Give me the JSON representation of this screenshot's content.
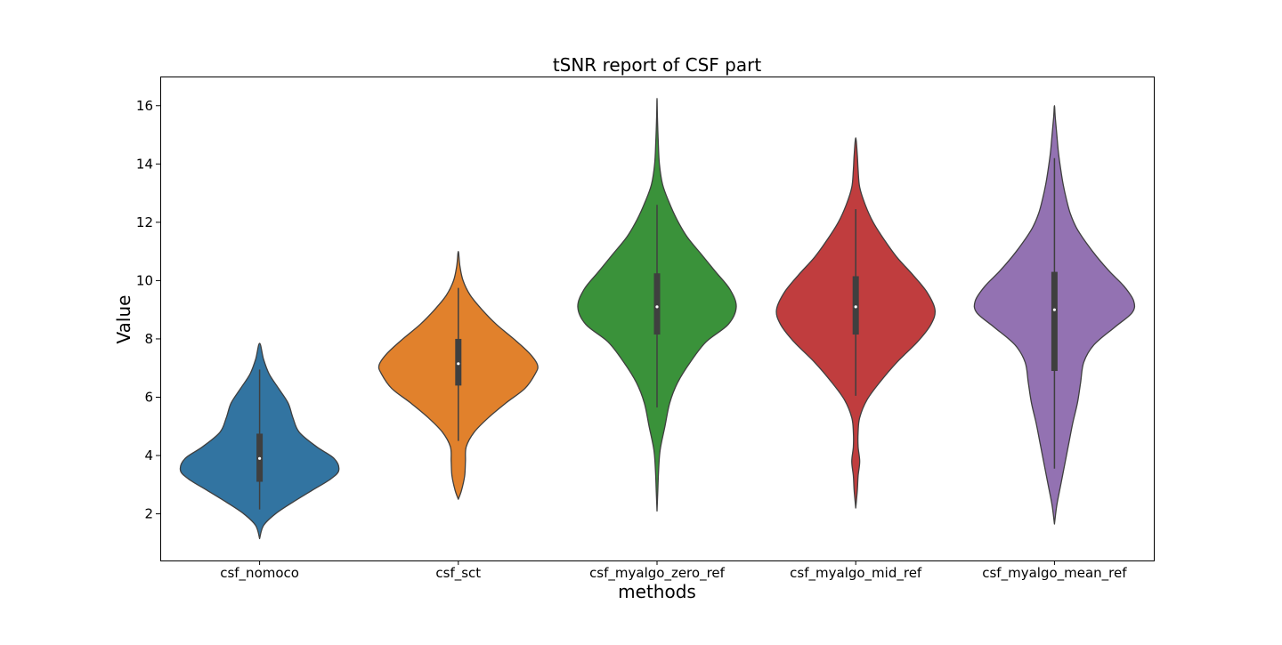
{
  "chart_data": {
    "type": "violin",
    "title": "tSNR report of CSF part",
    "xlabel": "methods",
    "ylabel": "Value",
    "ylim": [
      0.4,
      17.0
    ],
    "yticks": [
      2,
      4,
      6,
      8,
      10,
      12,
      14,
      16
    ],
    "grid": false,
    "legend": "none",
    "categories": [
      "csf_nomoco",
      "csf_sct",
      "csf_myalgo_zero_ref",
      "csf_myalgo_mid_ref",
      "csf_myalgo_mean_ref"
    ],
    "colors": [
      "#3274a1",
      "#e1812c",
      "#3a923a",
      "#c03d3e",
      "#9372b2"
    ],
    "series": [
      {
        "min": 2.15,
        "q1": 3.1,
        "median": 3.9,
        "q3": 4.75,
        "max": 6.95,
        "density": [
          [
            1.15,
            0.0
          ],
          [
            1.6,
            0.05
          ],
          [
            2.0,
            0.2
          ],
          [
            2.4,
            0.42
          ],
          [
            2.8,
            0.66
          ],
          [
            3.2,
            0.9
          ],
          [
            3.5,
            1.0
          ],
          [
            3.9,
            0.94
          ],
          [
            4.3,
            0.72
          ],
          [
            4.8,
            0.5
          ],
          [
            5.3,
            0.42
          ],
          [
            5.8,
            0.36
          ],
          [
            6.3,
            0.24
          ],
          [
            6.8,
            0.12
          ],
          [
            7.3,
            0.05
          ],
          [
            7.85,
            0.0
          ]
        ]
      },
      {
        "min": 4.5,
        "q1": 6.4,
        "median": 7.15,
        "q3": 8.0,
        "max": 9.75,
        "density": [
          [
            2.5,
            0.0
          ],
          [
            2.8,
            0.04
          ],
          [
            3.3,
            0.08
          ],
          [
            3.8,
            0.09
          ],
          [
            4.3,
            0.1
          ],
          [
            4.8,
            0.2
          ],
          [
            5.3,
            0.38
          ],
          [
            5.8,
            0.6
          ],
          [
            6.3,
            0.84
          ],
          [
            6.8,
            0.97
          ],
          [
            7.1,
            1.0
          ],
          [
            7.5,
            0.9
          ],
          [
            8.0,
            0.7
          ],
          [
            8.5,
            0.48
          ],
          [
            9.0,
            0.3
          ],
          [
            9.5,
            0.15
          ],
          [
            10.0,
            0.06
          ],
          [
            10.5,
            0.02
          ],
          [
            11.0,
            0.0
          ]
        ]
      },
      {
        "min": 5.65,
        "q1": 8.15,
        "median": 9.1,
        "q3": 10.25,
        "max": 12.6,
        "density": [
          [
            2.1,
            0.0
          ],
          [
            2.8,
            0.01
          ],
          [
            3.5,
            0.02
          ],
          [
            4.2,
            0.04
          ],
          [
            5.0,
            0.1
          ],
          [
            5.8,
            0.16
          ],
          [
            6.5,
            0.26
          ],
          [
            7.2,
            0.42
          ],
          [
            7.9,
            0.62
          ],
          [
            8.5,
            0.9
          ],
          [
            9.1,
            1.0
          ],
          [
            9.7,
            0.92
          ],
          [
            10.3,
            0.74
          ],
          [
            10.9,
            0.56
          ],
          [
            11.5,
            0.38
          ],
          [
            12.1,
            0.25
          ],
          [
            12.7,
            0.15
          ],
          [
            13.3,
            0.07
          ],
          [
            14.0,
            0.03
          ],
          [
            14.8,
            0.015
          ],
          [
            15.6,
            0.005
          ],
          [
            16.25,
            0.0
          ]
        ]
      },
      {
        "min": 6.05,
        "q1": 8.15,
        "median": 9.1,
        "q3": 10.15,
        "max": 12.45,
        "density": [
          [
            2.2,
            0.0
          ],
          [
            2.8,
            0.02
          ],
          [
            3.3,
            0.03
          ],
          [
            3.8,
            0.05
          ],
          [
            4.3,
            0.03
          ],
          [
            4.8,
            0.03
          ],
          [
            5.3,
            0.05
          ],
          [
            5.9,
            0.14
          ],
          [
            6.5,
            0.3
          ],
          [
            7.2,
            0.52
          ],
          [
            7.9,
            0.78
          ],
          [
            8.5,
            0.95
          ],
          [
            9.0,
            1.0
          ],
          [
            9.6,
            0.9
          ],
          [
            10.2,
            0.72
          ],
          [
            10.8,
            0.52
          ],
          [
            11.4,
            0.36
          ],
          [
            12.0,
            0.22
          ],
          [
            12.6,
            0.12
          ],
          [
            13.2,
            0.05
          ],
          [
            13.8,
            0.03
          ],
          [
            14.3,
            0.02
          ],
          [
            14.9,
            0.0
          ]
        ]
      },
      {
        "min": 3.55,
        "q1": 6.9,
        "median": 9.0,
        "q3": 10.3,
        "max": 14.2,
        "density": [
          [
            1.65,
            0.0
          ],
          [
            2.3,
            0.03
          ],
          [
            3.0,
            0.08
          ],
          [
            3.7,
            0.13
          ],
          [
            4.4,
            0.18
          ],
          [
            5.1,
            0.23
          ],
          [
            5.8,
            0.29
          ],
          [
            6.5,
            0.33
          ],
          [
            7.2,
            0.37
          ],
          [
            7.8,
            0.5
          ],
          [
            8.4,
            0.76
          ],
          [
            8.9,
            0.98
          ],
          [
            9.3,
            1.0
          ],
          [
            9.8,
            0.88
          ],
          [
            10.3,
            0.7
          ],
          [
            10.8,
            0.54
          ],
          [
            11.3,
            0.4
          ],
          [
            11.8,
            0.28
          ],
          [
            12.3,
            0.2
          ],
          [
            12.8,
            0.15
          ],
          [
            13.3,
            0.11
          ],
          [
            13.8,
            0.08
          ],
          [
            14.4,
            0.05
          ],
          [
            15.0,
            0.03
          ],
          [
            15.6,
            0.01
          ],
          [
            16.0,
            0.0
          ]
        ]
      }
    ]
  }
}
